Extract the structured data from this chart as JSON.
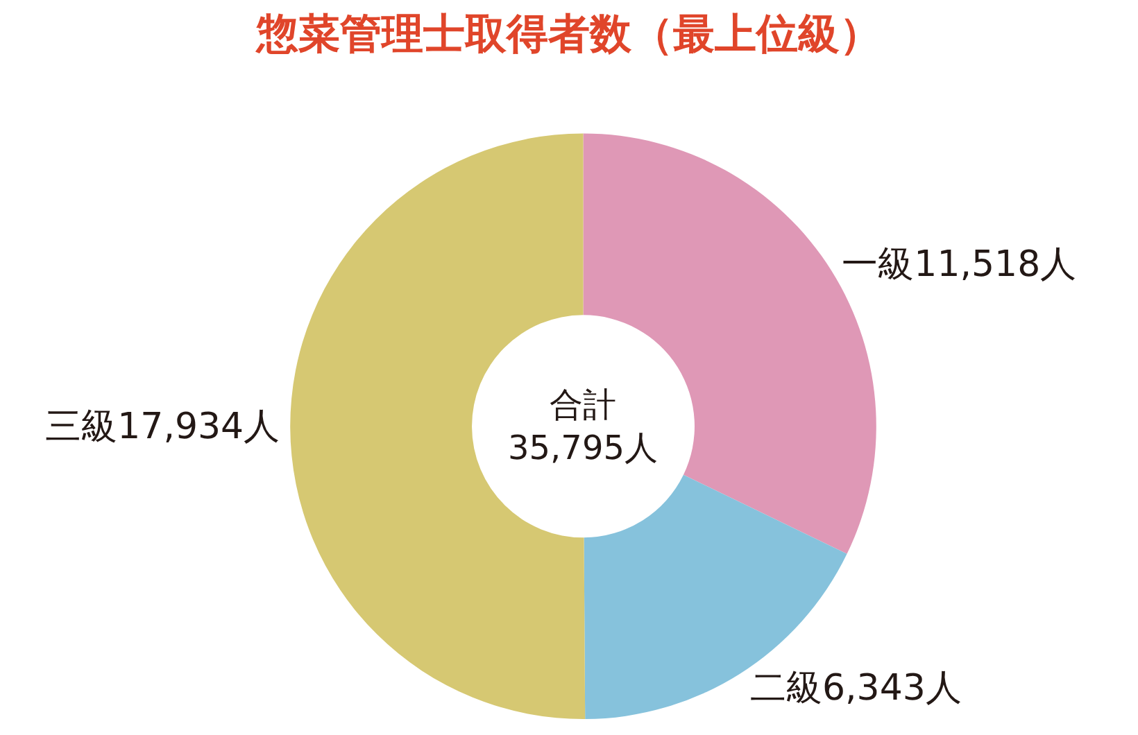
{
  "chart_data": {
    "type": "donut",
    "title": "惣菜管理士取得者数（最上位級）",
    "categories": [
      "一級",
      "二級",
      "三級"
    ],
    "values": [
      11518,
      6343,
      17934
    ],
    "colors": [
      "#df98b6",
      "#86c2dc",
      "#d6c872"
    ],
    "value_labels": [
      "11,518人",
      "6,343人",
      "17,934人"
    ],
    "annotations": [
      "合計\n35,795人"
    ],
    "legend": false
  }
}
